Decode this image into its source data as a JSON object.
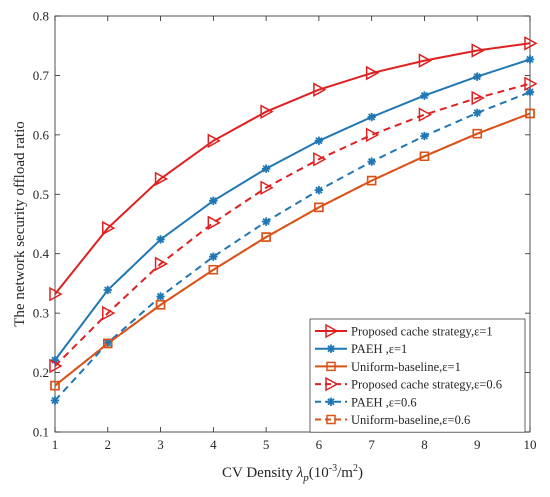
{
  "chart_data": {
    "type": "line",
    "xlabel": "CV Density λ_p(10^-3/m^2)",
    "xlabel_parts": {
      "prefix": "CV Density ",
      "lambda": "λ",
      "sub": "p",
      "open": "(10",
      "exp": "-3",
      "mid": "/m",
      "exp2": "2",
      "close": ")"
    },
    "ylabel": "The network security offload ratio",
    "xlim": [
      1,
      10
    ],
    "ylim": [
      0.1,
      0.8
    ],
    "xticks": [
      1,
      2,
      3,
      4,
      5,
      6,
      7,
      8,
      9,
      10
    ],
    "yticks": [
      0.1,
      0.2,
      0.3,
      0.4,
      0.5,
      0.6,
      0.7,
      0.8
    ],
    "grid": false,
    "legend_position": "bottom-right",
    "x": [
      1,
      2,
      3,
      4,
      5,
      6,
      7,
      8,
      9,
      10
    ],
    "series": [
      {
        "name": "Proposed cache strategy,ε=1",
        "color": "#e02020",
        "dash": "solid",
        "marker": "triangle-right",
        "values": [
          0.332,
          0.443,
          0.526,
          0.59,
          0.639,
          0.676,
          0.704,
          0.725,
          0.742,
          0.754
        ]
      },
      {
        "name": "PAEH ,ε=1",
        "color": "#1f77b4",
        "dash": "solid",
        "marker": "asterisk",
        "values": [
          0.221,
          0.339,
          0.424,
          0.489,
          0.543,
          0.59,
          0.63,
          0.666,
          0.698,
          0.727
        ]
      },
      {
        "name": "Uniform-baseline,ε=1",
        "color": "#d95319",
        "dash": "solid",
        "marker": "square",
        "values": [
          0.178,
          0.249,
          0.314,
          0.373,
          0.428,
          0.478,
          0.523,
          0.564,
          0.602,
          0.636
        ]
      },
      {
        "name": "Proposed cache strategy,ε=0.6",
        "color": "#e02020",
        "dash": "dashed",
        "marker": "triangle-right",
        "values": [
          0.211,
          0.3,
          0.383,
          0.452,
          0.511,
          0.559,
          0.6,
          0.634,
          0.662,
          0.686
        ]
      },
      {
        "name": "PAEH ,ε=0.6",
        "color": "#1f77b4",
        "dash": "dashed",
        "marker": "asterisk",
        "values": [
          0.153,
          0.25,
          0.328,
          0.395,
          0.454,
          0.507,
          0.555,
          0.598,
          0.637,
          0.672
        ]
      },
      {
        "name": "Uniform-baseline,ε=0.6",
        "color": "#d95319",
        "dash": "dashed",
        "marker": "square",
        "values": [
          0.178,
          0.249,
          0.314,
          0.373,
          0.428,
          0.478,
          0.523,
          0.564,
          0.602,
          0.636
        ]
      }
    ]
  }
}
